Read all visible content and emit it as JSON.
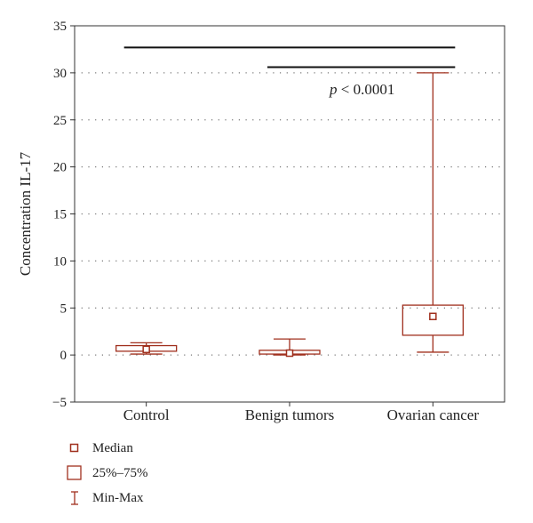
{
  "chart_data": {
    "type": "box",
    "categories": [
      "Control",
      "Benign tumors",
      "Ovarian cancer"
    ],
    "boxes": [
      {
        "min": 0.1,
        "q1": 0.4,
        "median": 0.6,
        "q3": 1.0,
        "max": 1.3
      },
      {
        "min": 0.0,
        "q1": 0.1,
        "median": 0.2,
        "q3": 0.5,
        "max": 1.7
      },
      {
        "min": 0.3,
        "q1": 2.1,
        "median": 4.1,
        "q3": 5.3,
        "max": 30.0
      }
    ],
    "ylabel": "Concentration IL-17",
    "ylim": [
      -5,
      35
    ],
    "yticks": [
      -5,
      0,
      5,
      10,
      15,
      20,
      25,
      30,
      35
    ],
    "grid": "horizontal dotted",
    "series_color": "#a0301e",
    "annotation": {
      "italic": "p",
      "text": " < 0.0001"
    },
    "significance_bars": [
      {
        "y": 32.7,
        "from": "Control",
        "to": "Ovarian cancer"
      },
      {
        "y": 30.6,
        "from": "Benign tumors",
        "to": "Ovarian cancer"
      }
    ]
  },
  "legend": {
    "median": "Median",
    "iqr": "25%–75%",
    "range": "Min-Max"
  }
}
